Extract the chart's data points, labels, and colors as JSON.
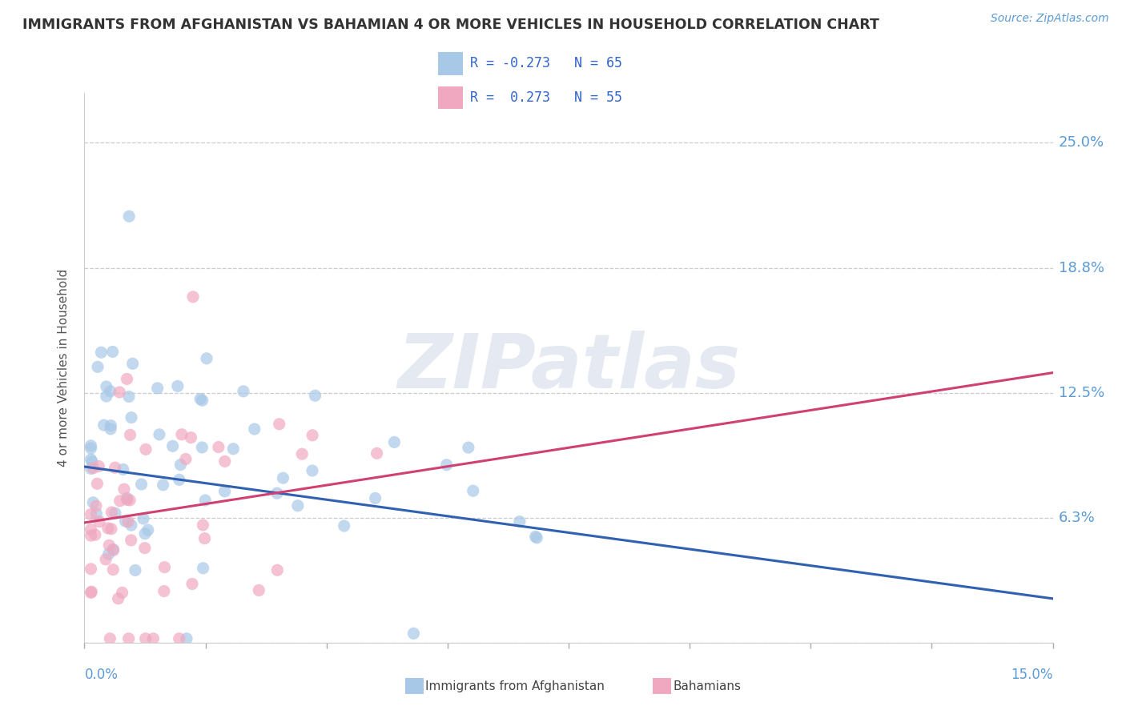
{
  "title": "IMMIGRANTS FROM AFGHANISTAN VS BAHAMIAN 4 OR MORE VEHICLES IN HOUSEHOLD CORRELATION CHART",
  "source": "Source: ZipAtlas.com",
  "ylabel": "4 or more Vehicles in Household",
  "xmin": 0.0,
  "xmax": 0.15,
  "ymin": 0.0,
  "ymax": 0.275,
  "ytick_vals": [
    0.0,
    0.0625,
    0.125,
    0.1875,
    0.25
  ],
  "ytick_labels": [
    "",
    "6.3%",
    "12.5%",
    "18.8%",
    "25.0%"
  ],
  "blue_R": -0.273,
  "blue_N": 65,
  "pink_R": 0.273,
  "pink_N": 55,
  "blue_color": "#a8c8e8",
  "pink_color": "#f0a8c0",
  "blue_line_color": "#3060b0",
  "pink_line_color": "#d04070",
  "label_blue": "Immigrants from Afghanistan",
  "label_pink": "Bahamians",
  "watermark_text": "ZIPatlas",
  "blue_line_y0": 0.088,
  "blue_line_y1": 0.022,
  "pink_line_y0": 0.06,
  "pink_line_y1": 0.135
}
